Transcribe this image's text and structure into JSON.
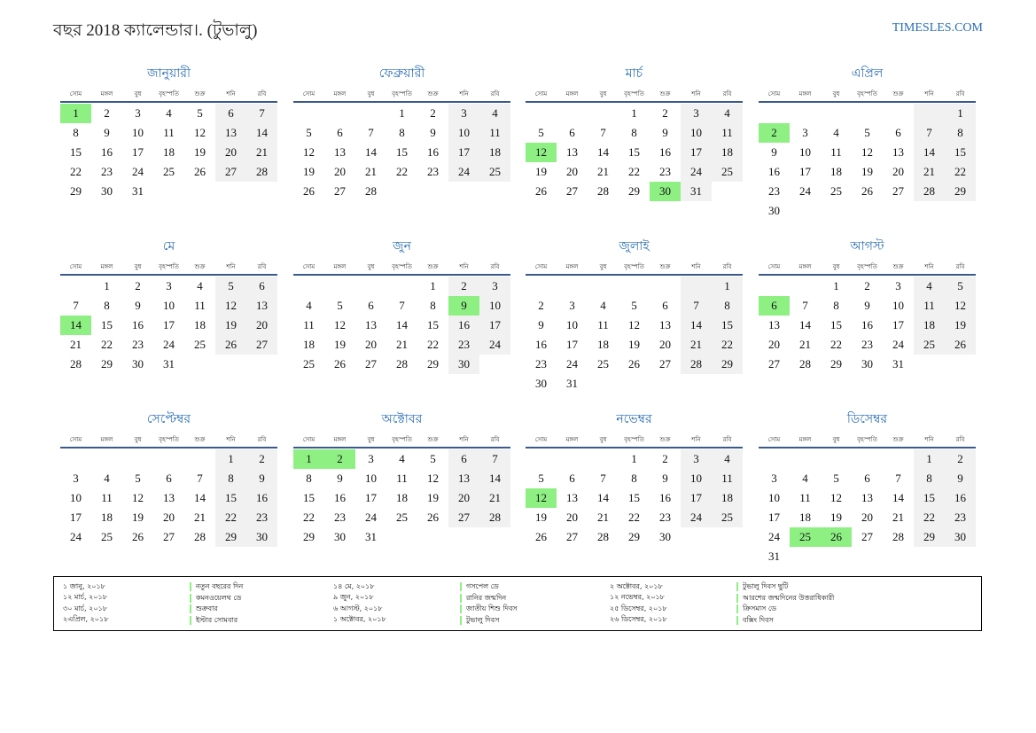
{
  "header": {
    "title": "বছর 2018 ক্যালেন্ডার।. (টুভালু)",
    "site": "TIMESLES.COM"
  },
  "weekdays": [
    "সোম",
    "মঙ্গল",
    "বুধ",
    "বৃহস্পতি",
    "শুক্র",
    "শনি",
    "রবি"
  ],
  "months": [
    {
      "name": "জানুয়ারী",
      "start": 0,
      "days": 31,
      "holidays": [
        1
      ]
    },
    {
      "name": "ফেব্রুয়ারী",
      "start": 3,
      "days": 28,
      "holidays": []
    },
    {
      "name": "মার্চ",
      "start": 3,
      "days": 31,
      "holidays": [
        12,
        30
      ]
    },
    {
      "name": "এপ্রিল",
      "start": 6,
      "days": 30,
      "holidays": [
        2
      ]
    },
    {
      "name": "মে",
      "start": 1,
      "days": 31,
      "holidays": [
        14
      ]
    },
    {
      "name": "জুন",
      "start": 4,
      "days": 30,
      "holidays": [
        9
      ]
    },
    {
      "name": "জুলাই",
      "start": 6,
      "days": 31,
      "holidays": []
    },
    {
      "name": "আগস্ট",
      "start": 2,
      "days": 31,
      "holidays": [
        6
      ]
    },
    {
      "name": "সেপ্টেম্বর",
      "start": 5,
      "days": 30,
      "holidays": []
    },
    {
      "name": "অক্টোবর",
      "start": 0,
      "days": 31,
      "holidays": [
        1,
        2
      ]
    },
    {
      "name": "নভেম্বর",
      "start": 3,
      "days": 30,
      "holidays": [
        12
      ]
    },
    {
      "name": "ডিসেম্বর",
      "start": 5,
      "days": 31,
      "holidays": [
        25,
        26
      ]
    }
  ],
  "legend": [
    [
      {
        "date": "১ জানু, ২০১৮",
        "name": "নতুন বছরের দিন"
      },
      {
        "date": "১২ মার্চ, ২০১৮",
        "name": "কমনওয়েলথ ডে"
      },
      {
        "date": "৩০ মার্চ, ২০১৮",
        "name": "শুক্রবার"
      },
      {
        "date": "২এপ্রিল, ২০১৮",
        "name": "ইস্টার সোমবার"
      }
    ],
    [
      {
        "date": "১৪ মে, ২০১৮",
        "name": "গসপেল ডে"
      },
      {
        "date": "৯ জুন, ২০১৮",
        "name": "রানির জন্মদিন"
      },
      {
        "date": "৬ আগস্ট, ২০১৮",
        "name": "জাতীয় শিশু দিবস"
      },
      {
        "date": "১ অক্টোবর, ২০১৮",
        "name": "টুভালু দিবস"
      }
    ],
    [
      {
        "date": "২ অক্টোবর, ২০১৮",
        "name": "টুভালু দিবস ছুটি"
      },
      {
        "date": "১২ নভেম্বর, ২০১৮",
        "name": "আরশের জন্মদিনের উত্তরাধিকারী"
      },
      {
        "date": "২৫ ডিসেম্বর, ২০১৮",
        "name": "ক্রিসমাস ডে"
      },
      {
        "date": "২৬ ডিসেম্বর, ২০১৮",
        "name": "বক্সিং দিবস"
      }
    ]
  ]
}
